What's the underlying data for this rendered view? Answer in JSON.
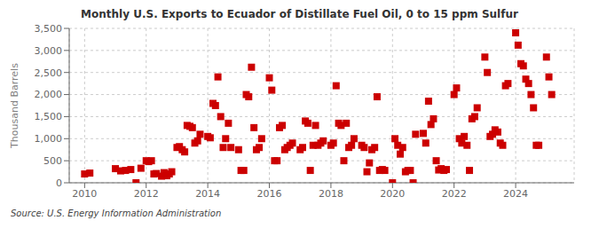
{
  "chart_data": {
    "type": "scatter",
    "title": "Monthly U.S. Exports to Ecuador of Distillate Fuel Oil, 0 to 15 ppm Sulfur",
    "ylabel": "Thousand Barrels",
    "source": "Source: U.S. Energy Information Administration",
    "color": "#cc0000",
    "marker": "square",
    "grid": true,
    "xlim": [
      2009.5,
      2025.9
    ],
    "xticks": [
      2010,
      2012,
      2014,
      2016,
      2018,
      2020,
      2022,
      2024
    ],
    "ylim": [
      0,
      3500
    ],
    "yticks": [
      0,
      500,
      {
        "value": 1000,
        "label": "1,000"
      },
      {
        "value": 1500,
        "label": "1,500"
      },
      {
        "value": 2000,
        "label": "2,000"
      },
      {
        "value": 2500,
        "label": "2,500"
      },
      {
        "value": 3000,
        "label": "3,000"
      },
      {
        "value": 3500,
        "label": "3,500"
      }
    ],
    "x": [
      2010.0,
      2010.17,
      2011.0,
      2011.17,
      2011.33,
      2011.5,
      2011.67,
      2011.83,
      2012.0,
      2012.08,
      2012.17,
      2012.25,
      2012.33,
      2012.5,
      2012.58,
      2012.67,
      2012.75,
      2012.83,
      2013.0,
      2013.08,
      2013.17,
      2013.25,
      2013.33,
      2013.42,
      2013.5,
      2013.58,
      2013.67,
      2013.75,
      2014.0,
      2014.08,
      2014.17,
      2014.25,
      2014.33,
      2014.42,
      2014.5,
      2014.58,
      2014.67,
      2014.75,
      2015.0,
      2015.08,
      2015.17,
      2015.25,
      2015.33,
      2015.42,
      2015.5,
      2015.58,
      2015.67,
      2015.75,
      2016.0,
      2016.08,
      2016.17,
      2016.25,
      2016.33,
      2016.42,
      2016.5,
      2016.58,
      2016.67,
      2016.75,
      2017.0,
      2017.08,
      2017.17,
      2017.25,
      2017.33,
      2017.42,
      2017.5,
      2017.58,
      2017.67,
      2017.75,
      2018.0,
      2018.08,
      2018.17,
      2018.25,
      2018.33,
      2018.42,
      2018.5,
      2018.58,
      2018.67,
      2018.75,
      2019.0,
      2019.08,
      2019.17,
      2019.25,
      2019.33,
      2019.42,
      2019.5,
      2019.58,
      2019.67,
      2019.75,
      2020.0,
      2020.08,
      2020.17,
      2020.25,
      2020.33,
      2020.42,
      2020.5,
      2020.58,
      2020.67,
      2020.75,
      2021.0,
      2021.08,
      2021.17,
      2021.25,
      2021.33,
      2021.42,
      2021.5,
      2021.58,
      2021.67,
      2021.75,
      2022.0,
      2022.08,
      2022.17,
      2022.25,
      2022.33,
      2022.42,
      2022.5,
      2022.58,
      2022.67,
      2022.75,
      2023.0,
      2023.08,
      2023.17,
      2023.25,
      2023.33,
      2023.42,
      2023.5,
      2023.58,
      2023.67,
      2023.75,
      2024.0,
      2024.08,
      2024.17,
      2024.25,
      2024.33,
      2024.42,
      2024.5,
      2024.58,
      2024.67,
      2024.75,
      2025.0,
      2025.08,
      2025.17
    ],
    "values": [
      200,
      220,
      320,
      270,
      280,
      300,
      0,
      330,
      500,
      480,
      500,
      200,
      210,
      150,
      230,
      160,
      200,
      250,
      800,
      820,
      750,
      700,
      1300,
      1280,
      1250,
      900,
      950,
      1100,
      1050,
      1020,
      1800,
      1750,
      2400,
      1500,
      800,
      1000,
      1350,
      800,
      750,
      280,
      280,
      2000,
      1950,
      2620,
      1250,
      750,
      800,
      1000,
      2380,
      2100,
      500,
      500,
      1250,
      1300,
      750,
      800,
      850,
      900,
      750,
      800,
      1400,
      1350,
      280,
      850,
      1300,
      850,
      900,
      950,
      850,
      900,
      2200,
      1350,
      1300,
      500,
      1350,
      800,
      850,
      1000,
      850,
      800,
      250,
      450,
      750,
      800,
      1950,
      280,
      300,
      280,
      0,
      1000,
      850,
      650,
      800,
      250,
      280,
      280,
      0,
      1100,
      1120,
      900,
      1850,
      1320,
      1450,
      500,
      290,
      320,
      280,
      300,
      2000,
      2150,
      1000,
      900,
      1050,
      850,
      280,
      1450,
      1500,
      1700,
      2850,
      2500,
      1050,
      1100,
      1200,
      1150,
      900,
      850,
      2200,
      2250,
      3400,
      3120,
      2700,
      2650,
      2350,
      2250,
      2000,
      1700,
      850,
      850,
      2850,
      2400,
      2000
    ]
  }
}
